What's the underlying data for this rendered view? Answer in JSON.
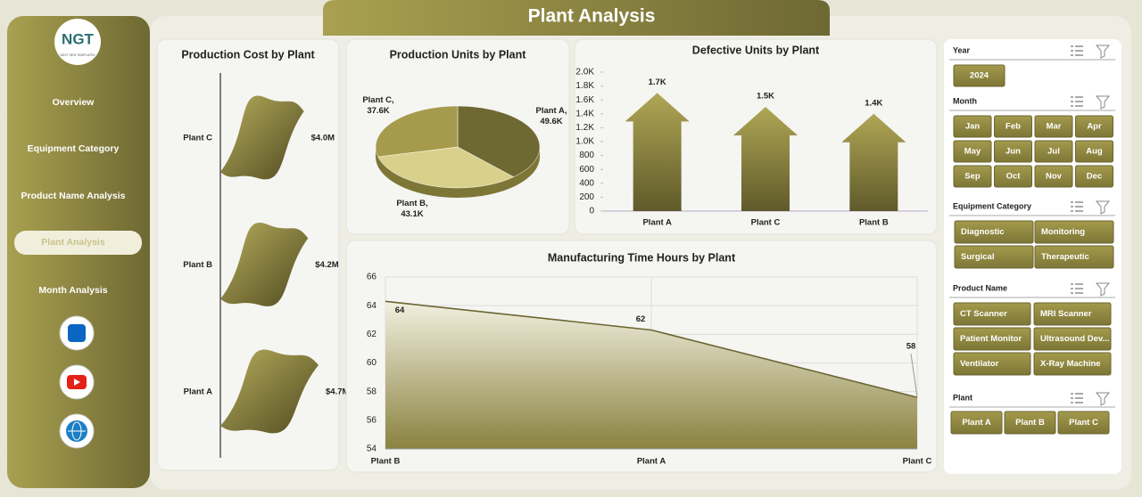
{
  "header": {
    "title": "Plant Analysis"
  },
  "logo": {
    "text": "NGT",
    "subtitle": "NEXT GEN TEMPLATES"
  },
  "nav": {
    "items": [
      "Overview",
      "Equipment Category",
      "Product Name Analysis",
      "Plant Analysis",
      "Month Analysis"
    ],
    "active": 3
  },
  "chart_data": [
    {
      "type": "bar",
      "orientation": "horizontal",
      "title": "Production Cost by Plant",
      "categories": [
        "Plant C",
        "Plant B",
        "Plant A"
      ],
      "values": [
        4000000,
        4200000,
        4700000
      ],
      "value_labels": [
        "$4.0M",
        "$4.2M",
        "$4.7M"
      ],
      "color": "#6b6530"
    },
    {
      "type": "pie",
      "title": "Production Units by Plant",
      "categories": [
        "Plant A",
        "Plant B",
        "Plant C"
      ],
      "values": [
        49600,
        43100,
        37600
      ],
      "value_labels": [
        "49.6K",
        "43.1K",
        "37.6K"
      ],
      "separator": ",",
      "colors": [
        "#6e6833",
        "#d9d08c",
        "#a69b4c"
      ]
    },
    {
      "type": "bar",
      "orientation": "vertical",
      "title": "Defective Units by Plant",
      "categories": [
        "Plant A",
        "Plant C",
        "Plant B"
      ],
      "values": [
        1700,
        1500,
        1400
      ],
      "value_labels": [
        "1.7K",
        "1.5K",
        "1.4K"
      ],
      "color": "#8a8240",
      "ylim": [
        0,
        2000
      ],
      "yticks": [
        0,
        200,
        400,
        600,
        800,
        {
          "value": 1000,
          "label": "1.0K"
        },
        {
          "value": 1200,
          "label": "1.2K"
        },
        {
          "value": 1400,
          "label": "1.4K"
        },
        {
          "value": 1600,
          "label": "1.6K"
        },
        {
          "value": 1800,
          "label": "1.8K"
        },
        {
          "value": 2000,
          "label": "2.0K"
        }
      ]
    },
    {
      "type": "area",
      "title": "Manufacturing Time Hours by Plant",
      "categories": [
        "Plant B",
        "Plant A",
        "Plant C"
      ],
      "values": [
        64.3,
        62.3,
        57.6
      ],
      "value_labels": [
        "64",
        "62",
        "58"
      ],
      "color": "#6b6530",
      "ylim": [
        54,
        66
      ],
      "yticks": [
        54,
        56,
        58,
        60,
        62,
        64,
        66
      ],
      "grid": true
    }
  ],
  "slicers": [
    {
      "title": "Year",
      "items": [
        "2024"
      ]
    },
    {
      "title": "Month",
      "items": [
        "Jan",
        "Feb",
        "Mar",
        "Apr",
        "May",
        "Jun",
        "Jul",
        "Aug",
        "Sep",
        "Oct",
        "Nov",
        "Dec"
      ]
    },
    {
      "title": "Equipment Category",
      "items": [
        "Diagnostic",
        "Monitoring",
        "Surgical",
        "Therapeutic"
      ]
    },
    {
      "title": "Product Name",
      "items": [
        "CT Scanner",
        "MRI Scanner",
        "Patient Monitor",
        "Ultrasound Dev...",
        "Ventilator",
        "X-Ray Machine"
      ]
    },
    {
      "title": "Plant",
      "items": [
        "Plant A",
        "Plant B",
        "Plant C"
      ]
    }
  ]
}
